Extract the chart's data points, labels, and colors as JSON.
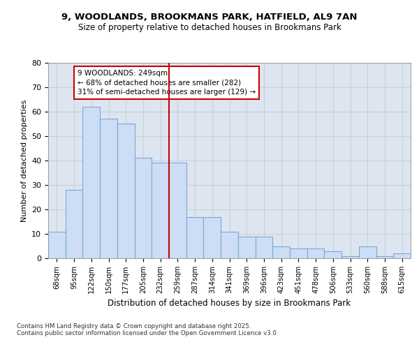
{
  "title1": "9, WOODLANDS, BROOKMANS PARK, HATFIELD, AL9 7AN",
  "title2": "Size of property relative to detached houses in Brookmans Park",
  "xlabel": "Distribution of detached houses by size in Brookmans Park",
  "ylabel": "Number of detached properties",
  "bar_values": [
    11,
    28,
    62,
    57,
    55,
    41,
    39,
    39,
    17,
    17,
    11,
    9,
    9,
    5,
    4,
    4,
    3,
    1,
    5,
    1,
    2
  ],
  "bin_labels": [
    "68sqm",
    "95sqm",
    "122sqm",
    "150sqm",
    "177sqm",
    "205sqm",
    "232sqm",
    "259sqm",
    "287sqm",
    "314sqm",
    "341sqm",
    "369sqm",
    "396sqm",
    "423sqm",
    "451sqm",
    "478sqm",
    "506sqm",
    "533sqm",
    "560sqm",
    "588sqm",
    "615sqm"
  ],
  "bar_color": "#ccddf5",
  "bar_edge_color": "#7ba7d4",
  "vline_color": "#cc0000",
  "vline_pos": 6.5,
  "annotation_text": "9 WOODLANDS: 249sqm\n← 68% of detached houses are smaller (282)\n31% of semi-detached houses are larger (129) →",
  "annotation_box_color": "#ffffff",
  "annotation_box_edge": "#cc0000",
  "grid_color": "#c8d0dc",
  "background_color": "#dde6f0",
  "fig_background": "#ffffff",
  "footer_text": "Contains HM Land Registry data © Crown copyright and database right 2025.\nContains public sector information licensed under the Open Government Licence v3.0.",
  "ylim": [
    0,
    80
  ],
  "yticks": [
    0,
    10,
    20,
    30,
    40,
    50,
    60,
    70,
    80
  ]
}
